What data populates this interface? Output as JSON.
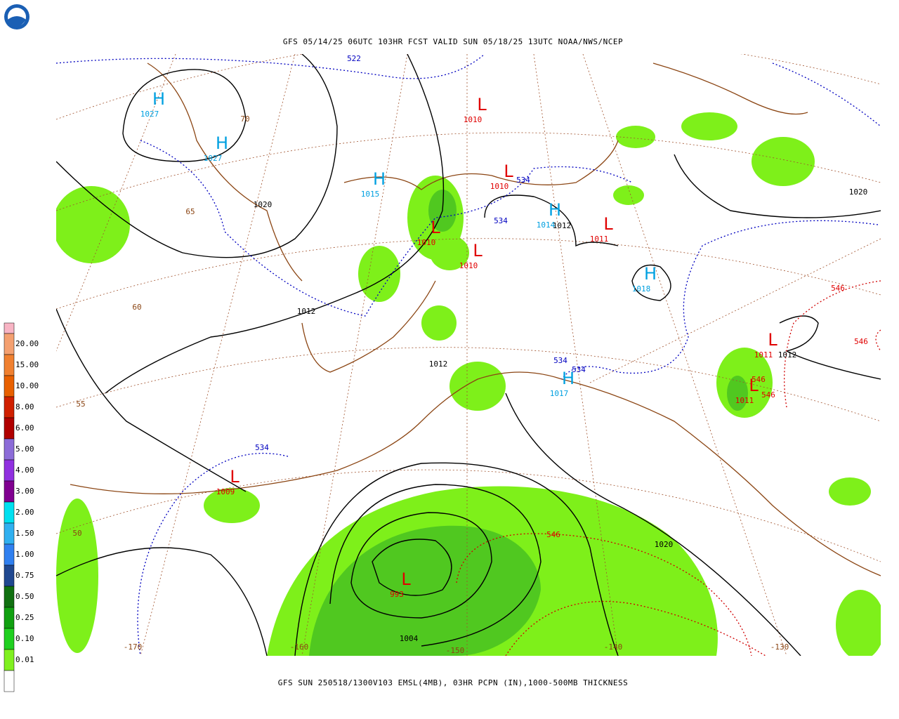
{
  "header": {
    "title": "GFS 05/14/25 06UTC 103HR FCST VALID SUN 05/18/25 13UTC NOAA/NWS/NCEP"
  },
  "footer": {
    "caption": "GFS SUN 250518/1300V103 EMSL(4MB), 03HR PCPN (IN),1000-500MB THICKNESS"
  },
  "legend": {
    "colors": [
      "#f8b4c4",
      "#f4a070",
      "#f08030",
      "#e86000",
      "#d02000",
      "#b00000",
      "#8c6cd8",
      "#9030e0",
      "#800090",
      "#00e0f0",
      "#30b0f0",
      "#3080f0",
      "#204890",
      "#107010",
      "#10a010",
      "#20d020",
      "#80f020",
      "#ffffff"
    ],
    "labels": [
      "20.00",
      "15.00",
      "10.00",
      "8.00",
      "6.00",
      "5.00",
      "4.00",
      "3.00",
      "2.00",
      "1.50",
      "1.00",
      "0.75",
      "0.50",
      "0.25",
      "0.10",
      "0.01"
    ]
  },
  "map": {
    "highs": [
      {
        "symbol": "H",
        "value": "1027"
      },
      {
        "symbol": "H",
        "value": "1027"
      },
      {
        "symbol": "H",
        "value": "1015"
      },
      {
        "symbol": "H",
        "value": "1014"
      },
      {
        "symbol": "H",
        "value": "1018"
      },
      {
        "symbol": "H",
        "value": "1017"
      }
    ],
    "lows": [
      {
        "symbol": "L",
        "value": "1010"
      },
      {
        "symbol": "L",
        "value": "1010"
      },
      {
        "symbol": "L",
        "value": "1010"
      },
      {
        "symbol": "L",
        "value": "1010"
      },
      {
        "symbol": "L",
        "value": "1011"
      },
      {
        "symbol": "L",
        "value": "1011"
      },
      {
        "symbol": "L",
        "value": "1011"
      },
      {
        "symbol": "L",
        "value": "1009"
      },
      {
        "symbol": "L",
        "value": "993"
      }
    ],
    "isobar_labels": [
      "1020",
      "1012",
      "1012",
      "1012",
      "1012",
      "1020",
      "1020",
      "1004"
    ],
    "thickness_labels_blue": [
      "522",
      "534",
      "534",
      "534",
      "534",
      "534"
    ],
    "thickness_labels_red": [
      "546",
      "546",
      "546",
      "546",
      "546"
    ],
    "grid_labels": [
      "70",
      "65",
      "60",
      "55",
      "50",
      "-170",
      "-160",
      "-150",
      "-140",
      "-130"
    ]
  }
}
